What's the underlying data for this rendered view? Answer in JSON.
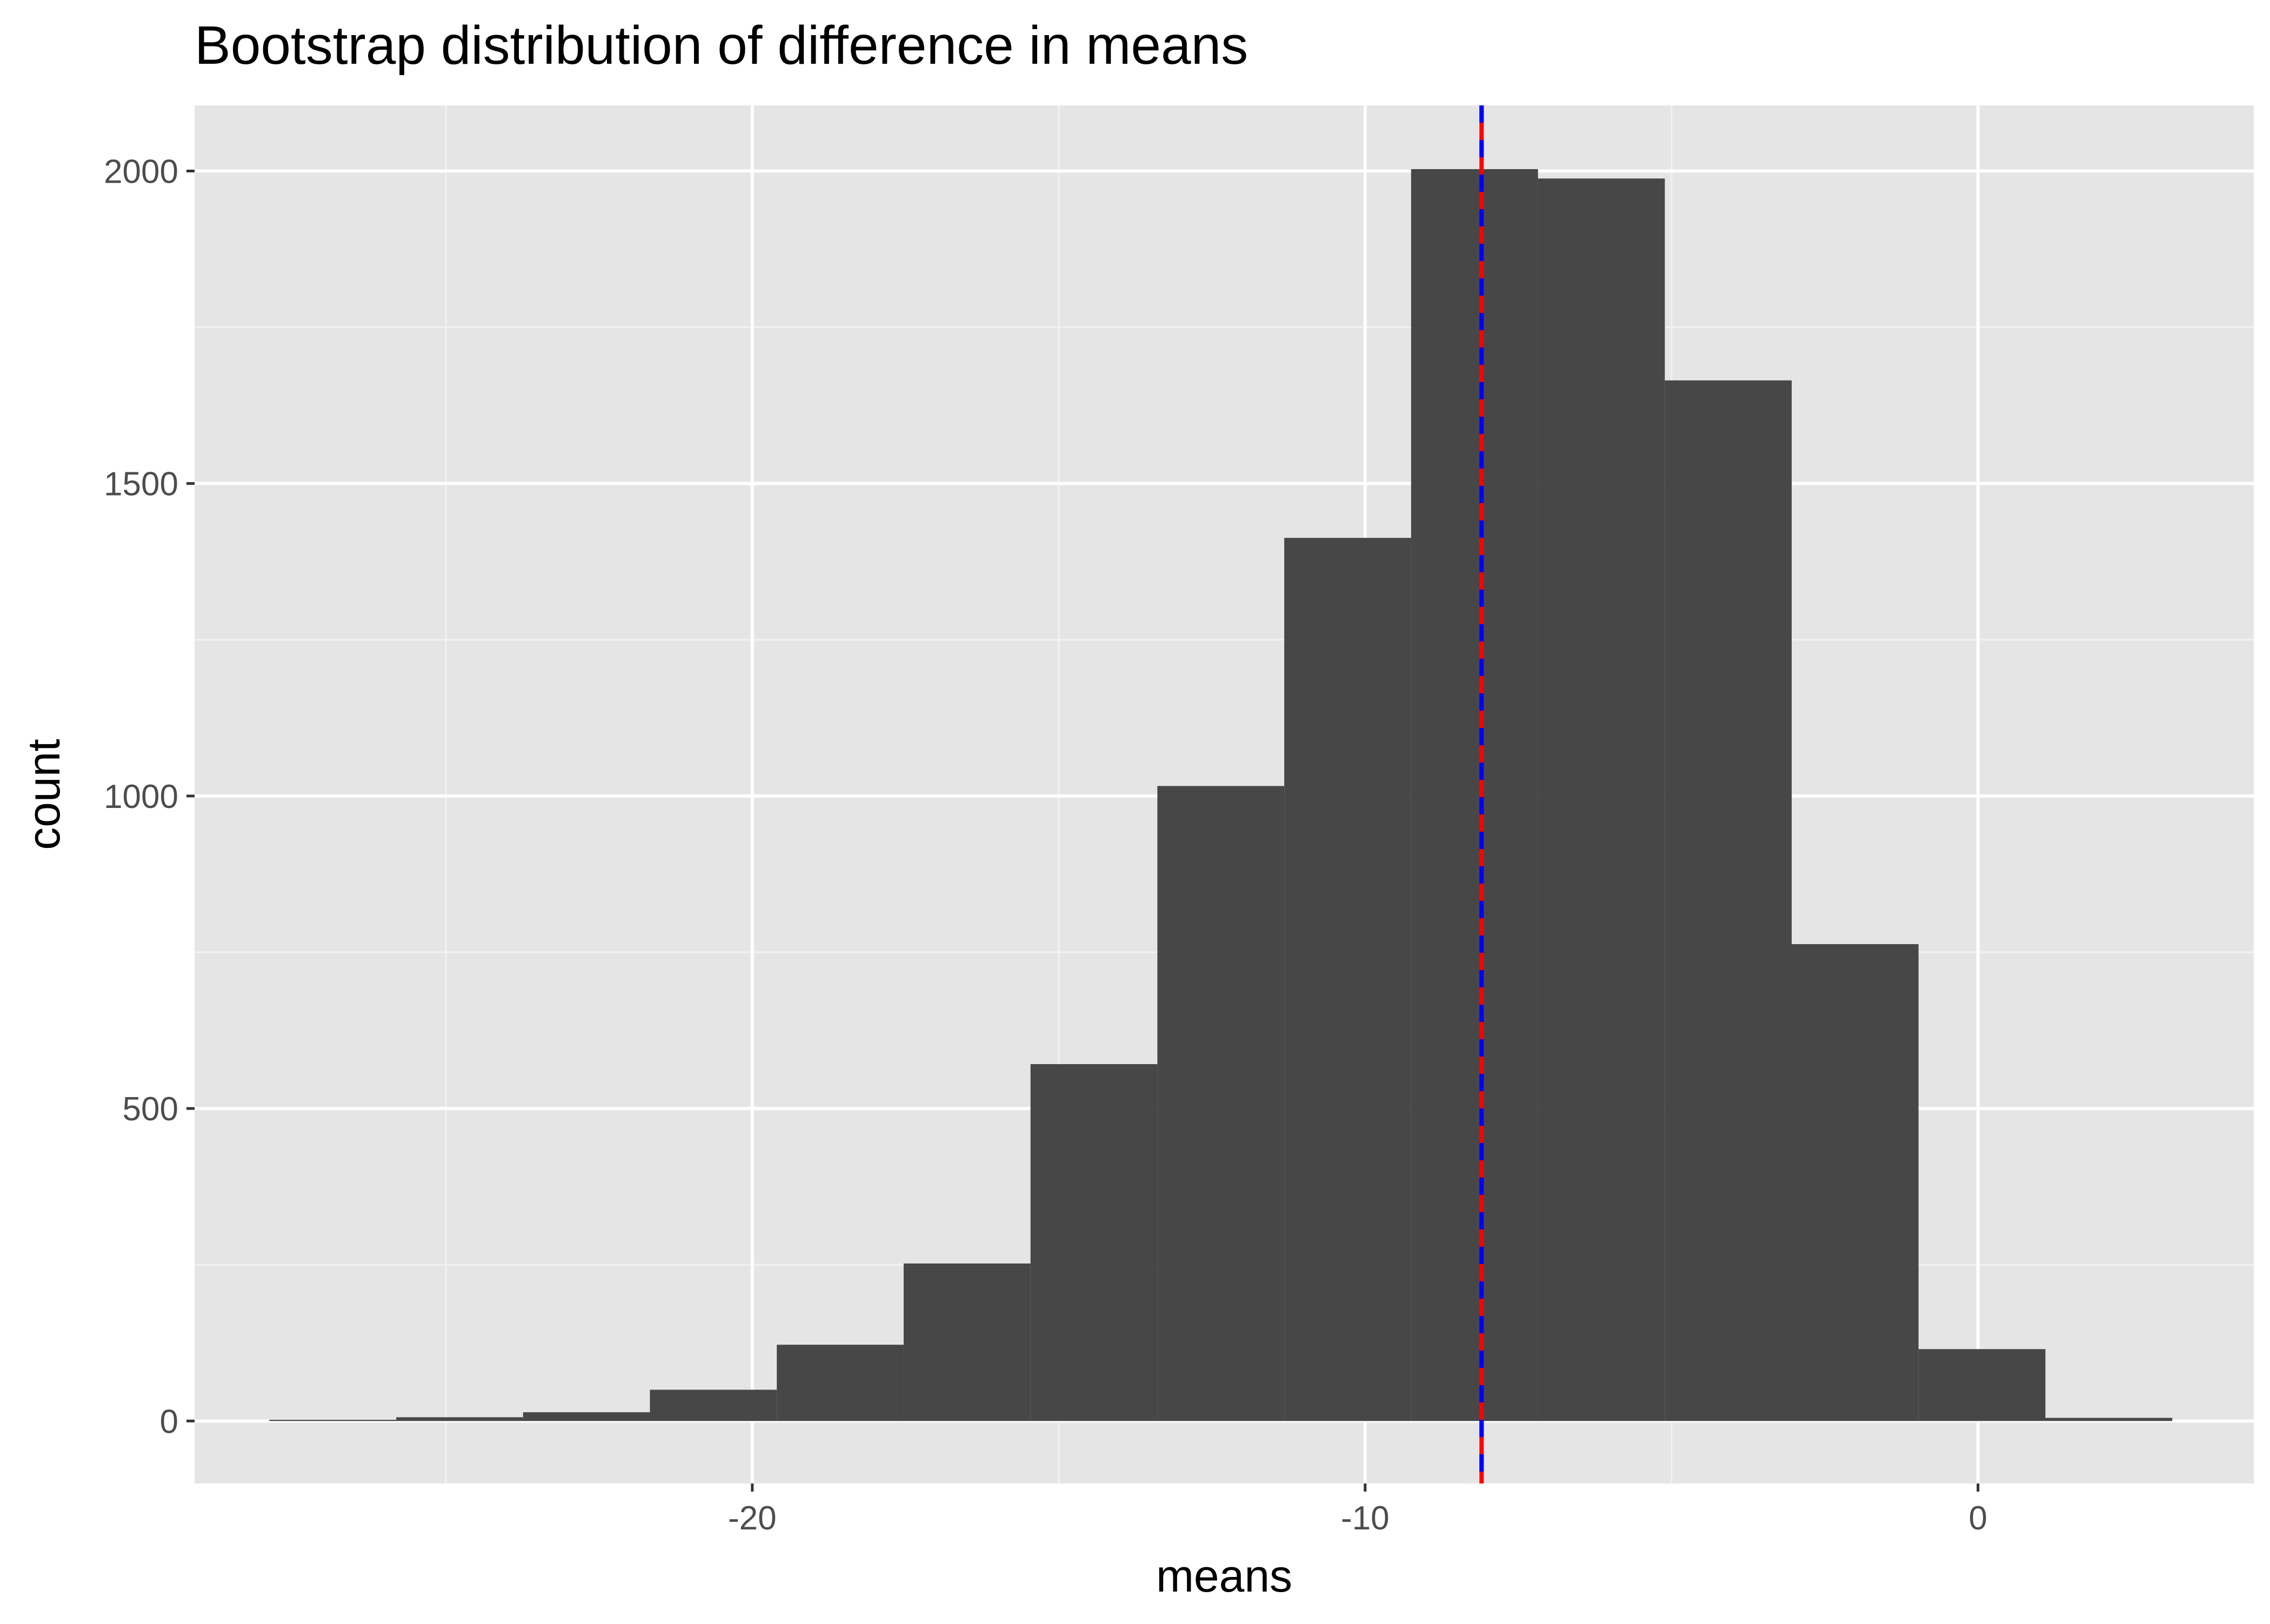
{
  "chart_data": {
    "type": "bar",
    "title": "Bootstrap distribution of difference in means",
    "xlabel": "means",
    "ylabel": "count",
    "xlim": [
      -29.1,
      4.5
    ],
    "ylim": [
      -100,
      2105
    ],
    "x_major_ticks": [
      -20,
      -10,
      0
    ],
    "x_tick_labels": [
      "-20",
      "-10",
      "0"
    ],
    "x_minor_gridlines": [
      -25,
      -15,
      -5
    ],
    "y_major_ticks": [
      0,
      500,
      1000,
      1500,
      2000
    ],
    "y_tick_labels": [
      "0",
      "500",
      "1000",
      "1500",
      "2000"
    ],
    "y_minor_gridlines": [
      250,
      750,
      1250,
      1750
    ],
    "grid": true,
    "bin_width": 2.07,
    "bins": [
      {
        "x_min": -27.88,
        "x_max": -25.81,
        "count": 2
      },
      {
        "x_min": -25.81,
        "x_max": -23.74,
        "count": 6
      },
      {
        "x_min": -23.74,
        "x_max": -21.67,
        "count": 14
      },
      {
        "x_min": -21.67,
        "x_max": -19.6,
        "count": 50
      },
      {
        "x_min": -19.6,
        "x_max": -17.53,
        "count": 122
      },
      {
        "x_min": -17.53,
        "x_max": -15.46,
        "count": 252
      },
      {
        "x_min": -15.46,
        "x_max": -13.39,
        "count": 571
      },
      {
        "x_min": -13.39,
        "x_max": -11.32,
        "count": 1016
      },
      {
        "x_min": -11.32,
        "x_max": -9.25,
        "count": 1413
      },
      {
        "x_min": -9.25,
        "x_max": -7.18,
        "count": 2003
      },
      {
        "x_min": -7.18,
        "x_max": -5.11,
        "count": 1988
      },
      {
        "x_min": -5.11,
        "x_max": -3.04,
        "count": 1665
      },
      {
        "x_min": -3.04,
        "x_max": -0.97,
        "count": 763
      },
      {
        "x_min": -0.97,
        "x_max": 1.1,
        "count": 115
      },
      {
        "x_min": 1.1,
        "x_max": 3.17,
        "count": 5
      }
    ],
    "reference_lines": [
      {
        "x": -8.1,
        "color": "#ff0000",
        "style": "solid"
      },
      {
        "x": -8.1,
        "color": "#0000ff",
        "style": "dashed"
      }
    ],
    "colors": {
      "panel_background": "#e5e5e5",
      "grid_major": "#ffffff",
      "grid_minor": "#f2f2f2",
      "bar_fill": "#474747",
      "tick_mark": "#333333"
    }
  }
}
